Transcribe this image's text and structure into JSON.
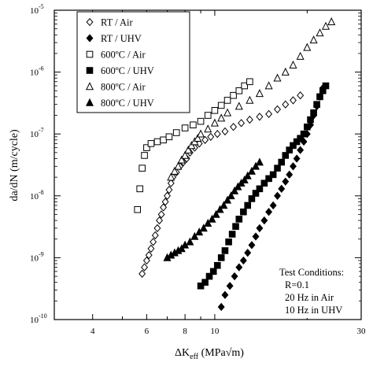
{
  "chart_data": {
    "type": "scatter",
    "title": "",
    "xlabel": {
      "main": "ΔK",
      "subscript": "eff",
      "units": " (MPa√m)"
    },
    "ylabel": "da/dN (m/cycle)",
    "x_scale": "log",
    "y_scale": "log",
    "xlim": [
      3,
      30
    ],
    "ylim": [
      1e-10,
      1e-05
    ],
    "x_ticks": [
      {
        "value": 4,
        "label": "4"
      },
      {
        "value": 6,
        "label": "6"
      },
      {
        "value": 8,
        "label": "8"
      },
      {
        "value": 10,
        "label": "10"
      },
      {
        "value": 30,
        "label": "30"
      }
    ],
    "y_ticks": [
      {
        "value": 1e-10,
        "mantissa": "10",
        "exponent": "-10"
      },
      {
        "value": 1e-09,
        "mantissa": "10",
        "exponent": "-9"
      },
      {
        "value": 1e-08,
        "mantissa": "10",
        "exponent": "-8"
      },
      {
        "value": 1e-07,
        "mantissa": "10",
        "exponent": "-7"
      },
      {
        "value": 1e-06,
        "mantissa": "10",
        "exponent": "-6"
      },
      {
        "value": 1e-05,
        "mantissa": "10",
        "exponent": "-5"
      }
    ],
    "grid": false,
    "legend_position": "top-left",
    "annotation": [
      "Test Conditions:",
      "R=0.1",
      "20 Hz in Air",
      "10 Hz in UHV"
    ],
    "series": [
      {
        "name": "RT / Air",
        "marker": "diamond-open",
        "points": [
          [
            5.8,
            5.5e-10
          ],
          [
            5.9,
            7e-10
          ],
          [
            6.0,
            9e-10
          ],
          [
            6.1,
            1.1e-09
          ],
          [
            6.2,
            1.4e-09
          ],
          [
            6.3,
            1.8e-09
          ],
          [
            6.4,
            2.3e-09
          ],
          [
            6.5,
            3e-09
          ],
          [
            6.6,
            4e-09
          ],
          [
            6.7,
            5e-09
          ],
          [
            6.8,
            6.5e-09
          ],
          [
            6.9,
            8e-09
          ],
          [
            7.0,
            1e-08
          ],
          [
            7.1,
            1.25e-08
          ],
          [
            7.2,
            1.6e-08
          ],
          [
            7.3,
            2e-08
          ],
          [
            7.5,
            2.4e-08
          ],
          [
            7.7,
            3e-08
          ],
          [
            7.9,
            3.5e-08
          ],
          [
            8.1,
            4e-08
          ],
          [
            8.3,
            5e-08
          ],
          [
            8.6,
            6e-08
          ],
          [
            8.9,
            7e-08
          ],
          [
            9.3,
            8e-08
          ],
          [
            9.7,
            9e-08
          ],
          [
            10.2,
            1e-07
          ],
          [
            10.8,
            1.1e-07
          ],
          [
            11.5,
            1.3e-07
          ],
          [
            12.2,
            1.5e-07
          ],
          [
            13,
            1.7e-07
          ],
          [
            14,
            1.9e-07
          ],
          [
            15,
            2.1e-07
          ],
          [
            16,
            2.5e-07
          ],
          [
            17,
            3e-07
          ],
          [
            18,
            3.5e-07
          ],
          [
            19,
            4.2e-07
          ]
        ]
      },
      {
        "name": "RT / UHV",
        "marker": "diamond-filled",
        "points": [
          [
            10.5,
            1.6e-10
          ],
          [
            10.8,
            2.5e-10
          ],
          [
            11.2,
            3.5e-10
          ],
          [
            11.6,
            5e-10
          ],
          [
            12,
            7e-10
          ],
          [
            12.4,
            9e-10
          ],
          [
            12.8,
            1.2e-09
          ],
          [
            13.2,
            1.6e-09
          ],
          [
            13.6,
            2.2e-09
          ],
          [
            14,
            3e-09
          ],
          [
            14.5,
            4e-09
          ],
          [
            15,
            5.5e-09
          ],
          [
            15.5,
            7e-09
          ],
          [
            16,
            1e-08
          ],
          [
            16.5,
            1.3e-08
          ],
          [
            17,
            1.7e-08
          ],
          [
            17.5,
            2.2e-08
          ],
          [
            18,
            3e-08
          ],
          [
            18.5,
            4e-08
          ],
          [
            19,
            5.5e-08
          ],
          [
            19.5,
            7.5e-08
          ],
          [
            20,
            1e-07
          ],
          [
            20.5,
            1.4e-07
          ],
          [
            21,
            2e-07
          ],
          [
            21.5,
            2.8e-07
          ],
          [
            22,
            4e-07
          ],
          [
            22.5,
            5.5e-07
          ]
        ]
      },
      {
        "name": "600ºC / Air",
        "marker": "square-open",
        "points": [
          [
            5.6,
            6e-09
          ],
          [
            5.7,
            1.3e-08
          ],
          [
            5.8,
            2.8e-08
          ],
          [
            5.9,
            4.5e-08
          ],
          [
            6.0,
            6e-08
          ],
          [
            6.2,
            7e-08
          ],
          [
            6.5,
            7.5e-08
          ],
          [
            6.8,
            8e-08
          ],
          [
            7.1,
            9e-08
          ],
          [
            7.5,
            1.05e-07
          ],
          [
            8.0,
            1.25e-07
          ],
          [
            8.5,
            1.4e-07
          ],
          [
            9.0,
            1.6e-07
          ],
          [
            9.5,
            2e-07
          ],
          [
            10,
            2.4e-07
          ],
          [
            10.5,
            2.9e-07
          ],
          [
            11,
            3.5e-07
          ],
          [
            11.5,
            4.2e-07
          ],
          [
            12,
            5e-07
          ],
          [
            12.5,
            6e-07
          ],
          [
            13,
            7e-07
          ]
        ]
      },
      {
        "name": "600ºC / UHV",
        "marker": "square-filled",
        "points": [
          [
            9.0,
            3.5e-10
          ],
          [
            9.3,
            4e-10
          ],
          [
            9.6,
            5e-10
          ],
          [
            9.9,
            6e-10
          ],
          [
            10.2,
            7.5e-10
          ],
          [
            10.5,
            1e-09
          ],
          [
            10.8,
            1.3e-09
          ],
          [
            11.1,
            1.8e-09
          ],
          [
            11.4,
            2.4e-09
          ],
          [
            11.7,
            3.2e-09
          ],
          [
            12,
            4.2e-09
          ],
          [
            12.4,
            5.5e-09
          ],
          [
            12.8,
            7e-09
          ],
          [
            13.2,
            9e-09
          ],
          [
            13.6,
            1.1e-08
          ],
          [
            14,
            1.3e-08
          ],
          [
            14.5,
            1.6e-08
          ],
          [
            15,
            1.9e-08
          ],
          [
            15.5,
            2.2e-08
          ],
          [
            16,
            2.8e-08
          ],
          [
            16.5,
            3.5e-08
          ],
          [
            17,
            4.5e-08
          ],
          [
            17.5,
            5.5e-08
          ],
          [
            18,
            6.5e-08
          ],
          [
            18.5,
            7.5e-08
          ],
          [
            19,
            8.5e-08
          ],
          [
            19.5,
            1e-07
          ],
          [
            20,
            1.3e-07
          ],
          [
            20.5,
            1.7e-07
          ],
          [
            21,
            2.2e-07
          ],
          [
            21.5,
            3e-07
          ],
          [
            22,
            4e-07
          ],
          [
            22.5,
            5e-07
          ],
          [
            23,
            6e-07
          ]
        ]
      },
      {
        "name": "800ºC / Air",
        "marker": "triangle-open",
        "points": [
          [
            7.2,
            2e-08
          ],
          [
            7.4,
            2.5e-08
          ],
          [
            7.6,
            3e-08
          ],
          [
            7.8,
            3.8e-08
          ],
          [
            8.0,
            4.5e-08
          ],
          [
            8.2,
            5.5e-08
          ],
          [
            8.4,
            6.5e-08
          ],
          [
            8.6,
            7.5e-08
          ],
          [
            8.8,
            8.5e-08
          ],
          [
            9.0,
            1e-07
          ],
          [
            9.5,
            1.2e-07
          ],
          [
            10,
            1.5e-07
          ],
          [
            10.5,
            1.8e-07
          ],
          [
            11,
            2.2e-07
          ],
          [
            12,
            2.8e-07
          ],
          [
            13,
            3.5e-07
          ],
          [
            14,
            4.5e-07
          ],
          [
            15,
            6e-07
          ],
          [
            16,
            8e-07
          ],
          [
            17,
            1e-06
          ],
          [
            18,
            1.3e-06
          ],
          [
            19,
            1.8e-06
          ],
          [
            20,
            2.5e-06
          ],
          [
            21,
            3.3e-06
          ],
          [
            22,
            4.3e-06
          ],
          [
            23,
            5.5e-06
          ],
          [
            24,
            6.5e-06
          ]
        ]
      },
      {
        "name": "800ºC / UHV",
        "marker": "triangle-filled",
        "points": [
          [
            7.0,
            1e-09
          ],
          [
            7.2,
            1.1e-09
          ],
          [
            7.4,
            1.2e-09
          ],
          [
            7.6,
            1.3e-09
          ],
          [
            7.8,
            1.4e-09
          ],
          [
            8.0,
            1.6e-09
          ],
          [
            8.3,
            1.8e-09
          ],
          [
            8.6,
            2.2e-09
          ],
          [
            8.9,
            2.6e-09
          ],
          [
            9.2,
            3e-09
          ],
          [
            9.5,
            3.6e-09
          ],
          [
            9.8,
            4.2e-09
          ],
          [
            10.1,
            5e-09
          ],
          [
            10.4,
            6e-09
          ],
          [
            10.7,
            7e-09
          ],
          [
            11.0,
            8.5e-09
          ],
          [
            11.3,
            1e-08
          ],
          [
            11.6,
            1.2e-08
          ],
          [
            11.9,
            1.4e-08
          ],
          [
            12.2,
            1.6e-08
          ],
          [
            12.5,
            1.8e-08
          ],
          [
            12.8,
            2.1e-08
          ],
          [
            13.2,
            2.5e-08
          ],
          [
            13.6,
            3e-08
          ],
          [
            14,
            3.5e-08
          ]
        ]
      }
    ]
  }
}
